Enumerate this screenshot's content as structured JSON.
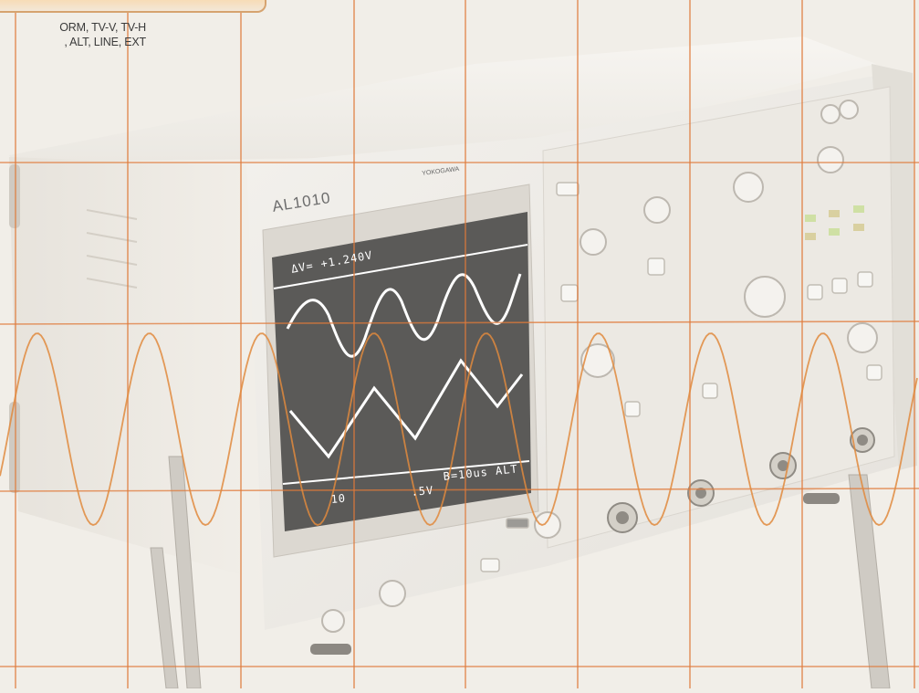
{
  "caption": {
    "line1": "ORM, TV-V, TV-H",
    "line2": ", ALT, LINE, EXT"
  },
  "oscilloscope": {
    "model": "AL1010",
    "maker": "YOKOGAWA",
    "readout_top": "ΔV= +1.240V",
    "readout_ch": "10",
    "readout_range": ".5V",
    "readout_time": "B=10us ALT"
  },
  "colors": {
    "grid_line": "#e07a3a",
    "sine_wave": "#e0893d",
    "screen_bg": "#5b5a58",
    "trace": "#ffffff",
    "caption_border": "#d6a36f"
  }
}
